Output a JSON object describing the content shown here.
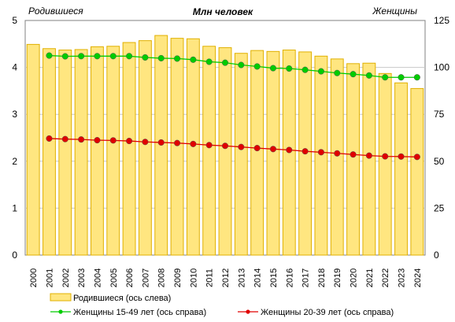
{
  "chart_data": {
    "type": "bar",
    "title": "Млн человек",
    "left_axis_label": "Родившиеся",
    "right_axis_label": "Женщины",
    "categories": [
      "2000",
      "2001",
      "2002",
      "2003",
      "2004",
      "2005",
      "2006",
      "2007",
      "2008",
      "2009",
      "2010",
      "2011",
      "2012",
      "2013",
      "2014",
      "2015",
      "2016",
      "2017",
      "2018",
      "2019",
      "2020",
      "2021",
      "2022",
      "2023",
      "2024"
    ],
    "left_axis": {
      "min": 0,
      "max": 5,
      "ticks": [
        0,
        1,
        2,
        3,
        4,
        5
      ]
    },
    "right_axis": {
      "min": 0,
      "max": 125,
      "ticks": [
        0,
        25,
        50,
        75,
        100,
        125
      ]
    },
    "bars": {
      "name": "Родившиеся (ось слева)",
      "axis": "left",
      "color": "#ffe680",
      "stroke": "#e0b000",
      "values": [
        4.49,
        4.4,
        4.37,
        4.38,
        4.44,
        4.45,
        4.53,
        4.57,
        4.68,
        4.62,
        4.61,
        4.45,
        4.42,
        4.3,
        4.36,
        4.34,
        4.37,
        4.33,
        4.24,
        4.18,
        4.08,
        4.09,
        3.87,
        3.67,
        3.55
      ]
    },
    "series": [
      {
        "name": "Женщины 15-49 лет (ось справа)",
        "axis": "right",
        "color": "#00cc00",
        "values": [
          null,
          106.3,
          105.9,
          106.0,
          106.0,
          106.0,
          106.0,
          105.3,
          104.9,
          104.7,
          104.1,
          103.0,
          102.5,
          101.3,
          100.5,
          99.6,
          99.4,
          98.7,
          97.9,
          97.0,
          96.4,
          95.7,
          94.7,
          94.7,
          94.7
        ]
      },
      {
        "name": "Женщины 20-39 лет (ось справа)",
        "axis": "right",
        "color": "#e00000",
        "values": [
          null,
          62.1,
          61.8,
          61.6,
          61.2,
          61.1,
          60.8,
          60.3,
          60.0,
          59.7,
          59.2,
          58.6,
          58.2,
          57.6,
          57.0,
          56.5,
          56.0,
          55.3,
          54.8,
          54.2,
          53.6,
          53.0,
          52.6,
          52.5,
          52.3
        ]
      }
    ]
  }
}
